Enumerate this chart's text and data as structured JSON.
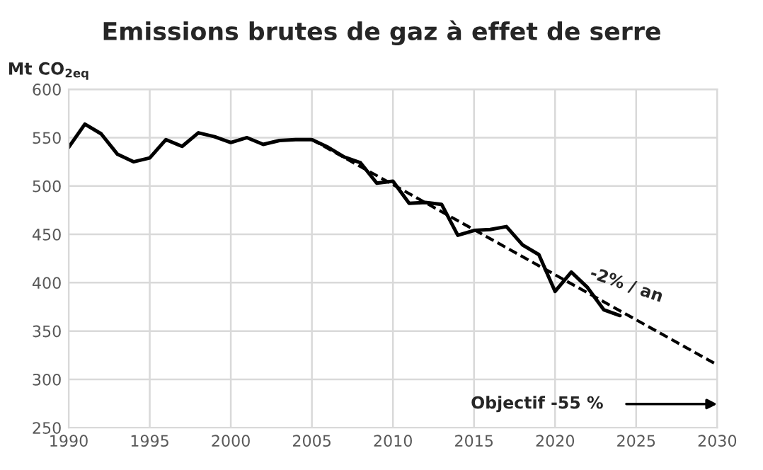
{
  "chart_data": {
    "type": "line",
    "title": "Emissions brutes de gaz à effet de serre",
    "ylabel": "Mt CO$_{2eq}$",
    "x": [
      1990,
      1991,
      1992,
      1993,
      1994,
      1995,
      1996,
      1997,
      1998,
      1999,
      2000,
      2001,
      2002,
      2003,
      2004,
      2005,
      2006,
      2007,
      2008,
      2009,
      2010,
      2011,
      2012,
      2013,
      2014,
      2015,
      2016,
      2017,
      2018,
      2019,
      2020,
      2021,
      2022,
      2023,
      2024
    ],
    "series": [
      {
        "color": "#000000",
        "line_style": "solid",
        "values": [
          540,
          564,
          554,
          533,
          525,
          529,
          548,
          541,
          555,
          551,
          545,
          550,
          543,
          547,
          548,
          548,
          540,
          530,
          524,
          503,
          505,
          482,
          483,
          481,
          449,
          454,
          455,
          458,
          439,
          429,
          391,
          411,
          395,
          372,
          366
        ]
      },
      {
        "color": "#000000",
        "line_style": "dashed",
        "x": [
          2005,
          2030
        ],
        "values": [
          548,
          315
        ]
      }
    ],
    "xlim": [
      1990,
      2030
    ],
    "xticks": [
      1990,
      1995,
      2000,
      2005,
      2010,
      2015,
      2020,
      2025,
      2030
    ],
    "ylim": [
      250,
      600
    ],
    "yticks": [
      250,
      300,
      350,
      400,
      450,
      500,
      550,
      600
    ],
    "grid": true,
    "legend": false,
    "annotations": [
      "-2% / an",
      "Objectif -55 %"
    ]
  }
}
